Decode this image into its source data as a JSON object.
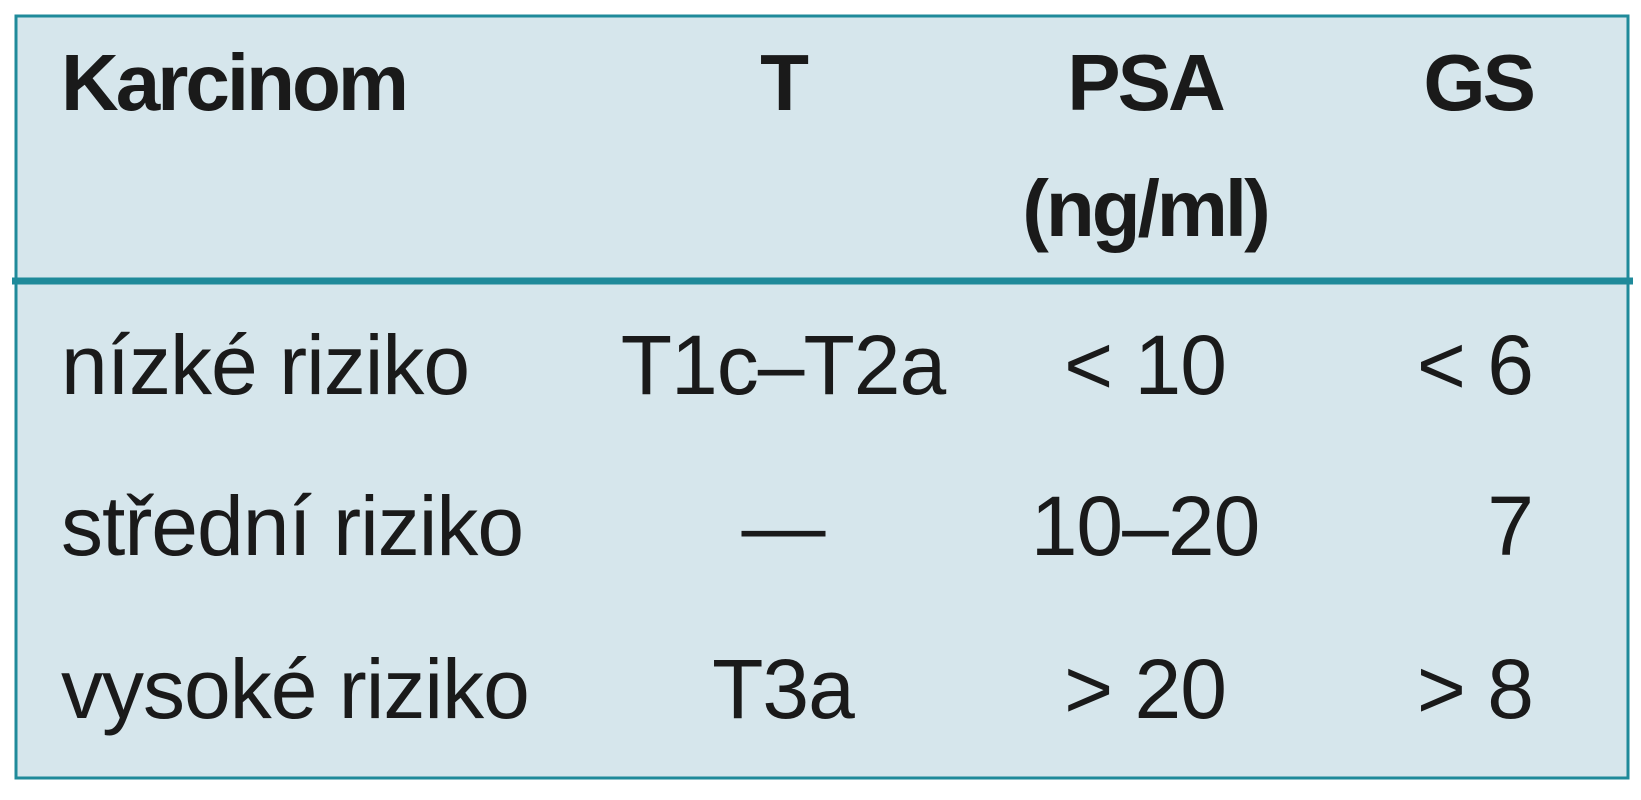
{
  "table": {
    "header": [
      "Karcinom",
      "T",
      [
        "PSA",
        "(ng/ml)"
      ],
      "GS"
    ],
    "rows": [
      [
        "nízké riziko",
        "T1c–T2a",
        "< 10",
        "< 6"
      ],
      [
        "střední riziko",
        "—",
        "10–20",
        "7"
      ],
      [
        "vysoké riziko",
        "T3a",
        "> 20",
        "> 8"
      ]
    ]
  }
}
